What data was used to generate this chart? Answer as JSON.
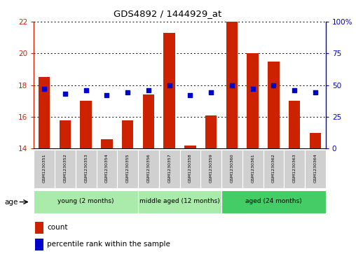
{
  "title": "GDS4892 / 1444929_at",
  "samples": [
    "GSM1230351",
    "GSM1230352",
    "GSM1230353",
    "GSM1230354",
    "GSM1230355",
    "GSM1230356",
    "GSM1230357",
    "GSM1230358",
    "GSM1230359",
    "GSM1230360",
    "GSM1230361",
    "GSM1230362",
    "GSM1230363",
    "GSM1230364"
  ],
  "counts": [
    18.5,
    15.8,
    17.0,
    14.6,
    15.8,
    17.4,
    21.3,
    14.2,
    16.1,
    22.0,
    20.0,
    19.5,
    17.0,
    15.0
  ],
  "percentiles": [
    47,
    43,
    46,
    42,
    44,
    46,
    50,
    42,
    44,
    50,
    47,
    50,
    46,
    44
  ],
  "ylim_left": [
    14,
    22
  ],
  "ylim_right": [
    0,
    100
  ],
  "yticks_left": [
    14,
    16,
    18,
    20,
    22
  ],
  "yticks_right": [
    0,
    25,
    50,
    75,
    100
  ],
  "ytick_right_labels": [
    "0",
    "25",
    "50",
    "75",
    "100%"
  ],
  "bar_color": "#cc2200",
  "dot_color": "#0000cc",
  "bar_width": 0.55,
  "grid_color": "#000000",
  "group_data": [
    {
      "label": "young (2 months)",
      "start": 0,
      "end": 5,
      "color": "#aaeaaa"
    },
    {
      "label": "middle aged (12 months)",
      "start": 5,
      "end": 9,
      "color": "#aaeaaa"
    },
    {
      "label": "aged (24 months)",
      "start": 9,
      "end": 14,
      "color": "#44cc66"
    }
  ],
  "legend_count_label": "count",
  "legend_pct_label": "percentile rank within the sample",
  "age_label": "age"
}
